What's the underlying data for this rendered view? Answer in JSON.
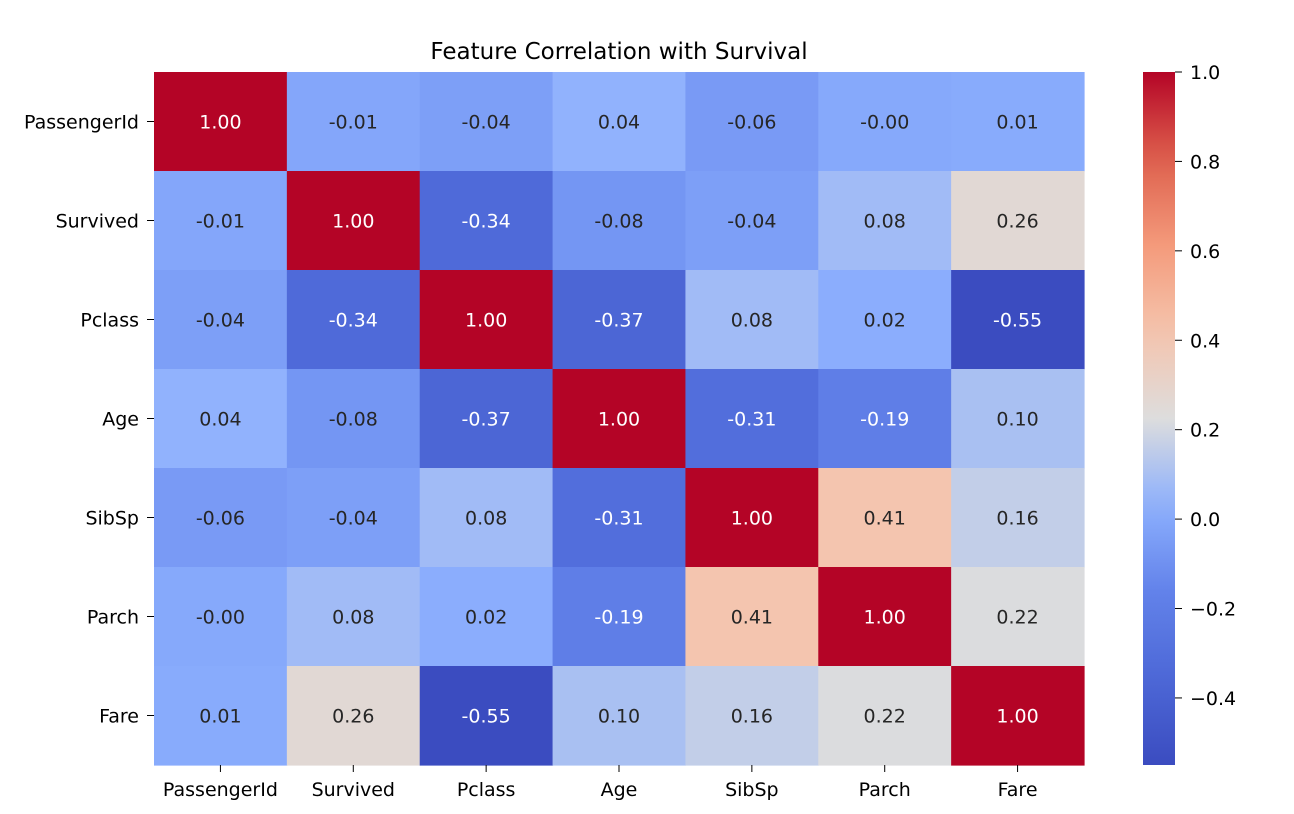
{
  "chart_data": {
    "type": "heatmap",
    "title": "Feature Correlation with Survival",
    "rows": [
      "PassengerId",
      "Survived",
      "Pclass",
      "Age",
      "SibSp",
      "Parch",
      "Fare"
    ],
    "columns": [
      "PassengerId",
      "Survived",
      "Pclass",
      "Age",
      "SibSp",
      "Parch",
      "Fare"
    ],
    "values": [
      [
        1.0,
        -0.01,
        -0.04,
        0.04,
        -0.06,
        -0.0,
        0.01
      ],
      [
        -0.01,
        1.0,
        -0.34,
        -0.08,
        -0.04,
        0.08,
        0.26
      ],
      [
        -0.04,
        -0.34,
        1.0,
        -0.37,
        0.08,
        0.02,
        -0.55
      ],
      [
        0.04,
        -0.08,
        -0.37,
        1.0,
        -0.31,
        -0.19,
        0.1
      ],
      [
        -0.06,
        -0.04,
        0.08,
        -0.31,
        1.0,
        0.41,
        0.16
      ],
      [
        -0.0,
        0.08,
        0.02,
        -0.19,
        0.41,
        1.0,
        0.22
      ],
      [
        0.01,
        0.26,
        -0.55,
        0.1,
        0.16,
        0.22,
        1.0
      ]
    ],
    "cell_labels": [
      [
        "1.00",
        "-0.01",
        "-0.04",
        "0.04",
        "-0.06",
        "-0.00",
        "0.01"
      ],
      [
        "-0.01",
        "1.00",
        "-0.34",
        "-0.08",
        "-0.04",
        "0.08",
        "0.26"
      ],
      [
        "-0.04",
        "-0.34",
        "1.00",
        "-0.37",
        "0.08",
        "0.02",
        "-0.55"
      ],
      [
        "0.04",
        "-0.08",
        "-0.37",
        "1.00",
        "-0.31",
        "-0.19",
        "0.10"
      ],
      [
        "-0.06",
        "-0.04",
        "0.08",
        "-0.31",
        "1.00",
        "0.41",
        "0.16"
      ],
      [
        "-0.00",
        "0.08",
        "0.02",
        "-0.19",
        "0.41",
        "1.00",
        "0.22"
      ],
      [
        "0.01",
        "0.26",
        "-0.55",
        "0.10",
        "0.16",
        "0.22",
        "1.00"
      ]
    ],
    "colormap": "coolwarm",
    "vmin": -0.55,
    "vmax": 1.0,
    "colorbar": {
      "ticks": [
        1.0,
        0.8,
        0.6,
        0.4,
        0.2,
        0.0,
        -0.2,
        -0.4
      ],
      "tick_labels": [
        "1.0",
        "0.8",
        "0.6",
        "0.4",
        "0.2",
        "0.0",
        "−0.2",
        "−0.4"
      ]
    },
    "colors": {
      "cool_end": "#3b4cc0",
      "neutral": "#dddddd",
      "warm_end": "#b40426"
    }
  }
}
